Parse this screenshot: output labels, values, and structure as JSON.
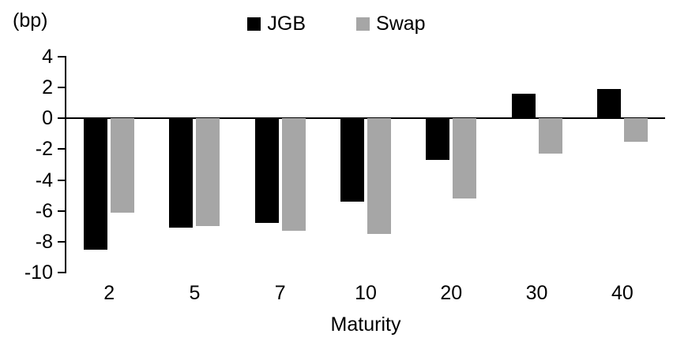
{
  "chart_data": {
    "type": "bar",
    "title": "",
    "ylabel": "(bp)",
    "xlabel": "Maturity",
    "categories": [
      "2",
      "5",
      "7",
      "10",
      "20",
      "30",
      "40"
    ],
    "series": [
      {
        "name": "JGB",
        "color": "#000000",
        "values": [
          -8.5,
          -7.1,
          -6.8,
          -5.4,
          -2.7,
          1.6,
          1.9
        ]
      },
      {
        "name": "Swap",
        "color": "#a6a6a6",
        "values": [
          -6.1,
          -7.0,
          -7.3,
          -7.5,
          -5.2,
          -2.3,
          -1.5
        ]
      }
    ],
    "ylim": [
      -10,
      4
    ],
    "yticks": [
      4,
      2,
      0,
      -2,
      -4,
      -6,
      -8,
      -10
    ],
    "grid": "off",
    "legend_position": "top-center"
  }
}
